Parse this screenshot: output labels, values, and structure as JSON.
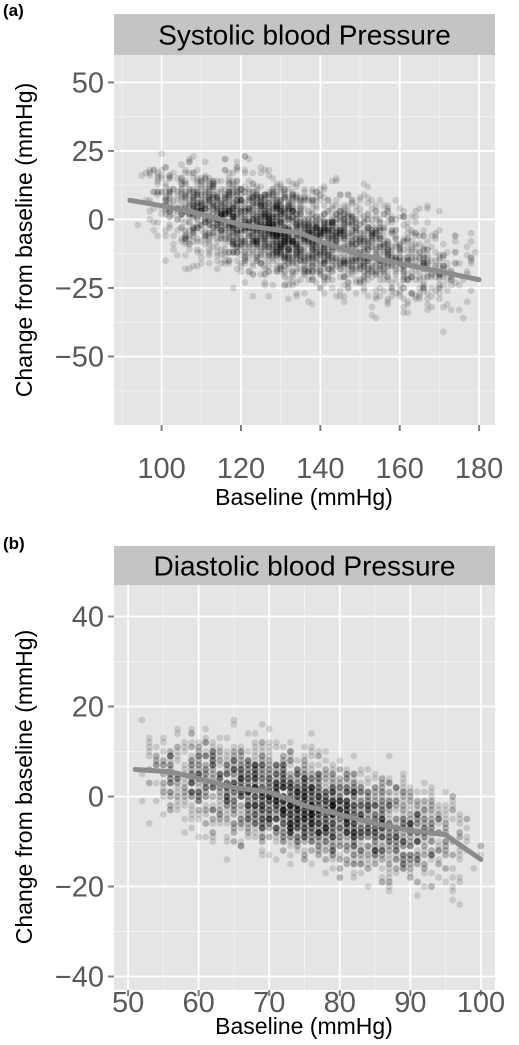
{
  "chart_data": [
    {
      "type": "scatter",
      "panel_label": "(a)",
      "title": "Systolic blood Pressure",
      "xlabel": "Baseline (mmHg)",
      "ylabel": "Change from baseline (mmHg)",
      "xlim": [
        88,
        184
      ],
      "ylim": [
        -75,
        60
      ],
      "xticks": [
        100,
        120,
        140,
        160,
        180
      ],
      "yticks": [
        50,
        25,
        0,
        -25,
        -50
      ],
      "xtick_labels": [
        "100",
        "120",
        "140",
        "160",
        "180"
      ],
      "ytick_labels": [
        "50",
        "25",
        "0",
        "−25",
        "−50"
      ],
      "grid": true,
      "point_color": "#000000",
      "smooth_color": "#8c8c8c",
      "panel_background": "#e5e5e5",
      "smooth": {
        "x": [
          92,
          100,
          110,
          120,
          130,
          135,
          140,
          150,
          160,
          170,
          180
        ],
        "y": [
          7,
          5,
          2,
          -2,
          -4,
          -5,
          -8,
          -13,
          -16,
          -19,
          -22
        ]
      },
      "scatter_model": {
        "x_range": [
          93,
          180
        ],
        "x_mode": 128,
        "intercept_at": 130,
        "intercept": -4,
        "slope": -0.33,
        "spread": 12,
        "n_points": 2600,
        "seed": 7
      }
    },
    {
      "type": "scatter",
      "panel_label": "(b)",
      "title": "Diastolic blood Pressure",
      "xlabel": "Baseline (mmHg)",
      "ylabel": "Change from baseline (mmHg)",
      "xlim": [
        48,
        102
      ],
      "ylim": [
        -43,
        47
      ],
      "xticks": [
        50,
        60,
        70,
        80,
        90,
        100
      ],
      "yticks": [
        40,
        20,
        0,
        -20,
        -40
      ],
      "xtick_labels": [
        "50",
        "60",
        "70",
        "80",
        "90",
        "100"
      ],
      "ytick_labels": [
        "40",
        "20",
        "0",
        "−20",
        "−40"
      ],
      "grid": true,
      "point_color": "#000000",
      "smooth_color": "#8c8c8c",
      "panel_background": "#e5e5e5",
      "smooth": {
        "x": [
          51,
          56,
          60,
          65,
          70,
          75,
          80,
          85,
          90,
          95,
          100
        ],
        "y": [
          6,
          5.5,
          4,
          2,
          1,
          -2,
          -4,
          -6,
          -7.5,
          -8.5,
          -14
        ]
      },
      "scatter_model": {
        "x_range": [
          51,
          100
        ],
        "x_mode": 75,
        "intercept_at": 75,
        "intercept": -2,
        "slope": -0.38,
        "spread": 7.5,
        "n_points": 2600,
        "seed": 13
      }
    }
  ]
}
